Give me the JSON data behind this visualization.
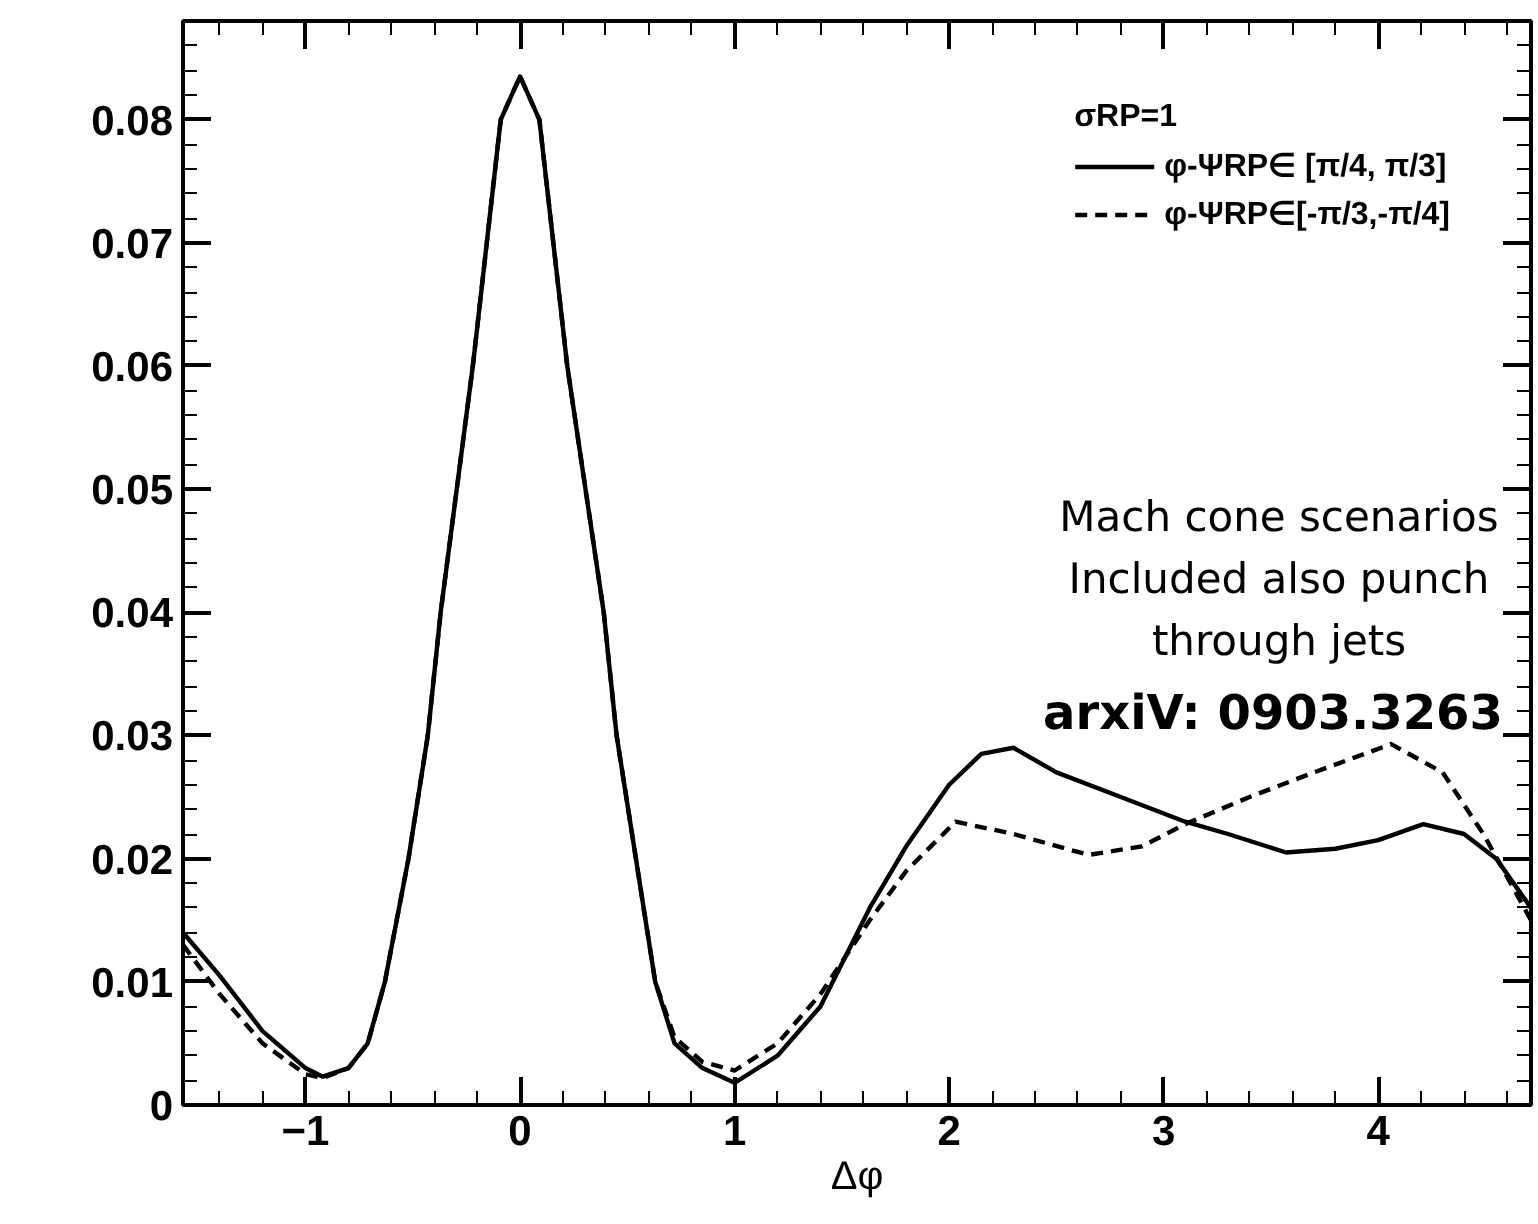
{
  "chart_data": {
    "type": "line",
    "xlabel": "Δφ",
    "legend_title": "σRP=1",
    "legend": "top right",
    "grid": false,
    "xlim": [
      -1.571,
      4.712
    ],
    "ylim": [
      0,
      0.088
    ],
    "xticks": [
      -1,
      0,
      1,
      2,
      3,
      4
    ],
    "yticks": [
      0,
      0.01,
      0.02,
      0.03,
      0.04,
      0.05,
      0.06,
      0.07,
      0.08
    ],
    "annotations": [
      "Mach cone scenarios\nIncluded also punch\nthrough jets",
      "arxiV: 0903.3263"
    ],
    "series": [
      {
        "name": "φ-ΨRP∈ [π/4, π/3]",
        "color": "#000000",
        "line_style": "solid",
        "x": [
          -1.571,
          -1.4,
          -1.2,
          -1.0,
          -0.92,
          -0.8,
          -0.71,
          -0.63,
          -0.52,
          -0.43,
          -0.37,
          -0.22,
          -0.09,
          0,
          0.09,
          0.22,
          0.39,
          0.45,
          0.54,
          0.63,
          0.72,
          0.85,
          1.0,
          1.2,
          1.4,
          1.63,
          1.8,
          2.0,
          2.15,
          2.3,
          2.5,
          2.8,
          3.1,
          3.3,
          3.57,
          3.8,
          4.0,
          4.21,
          4.4,
          4.55,
          4.712
        ],
        "values": [
          0.014,
          0.0105,
          0.006,
          0.003,
          0.0023,
          0.003,
          0.005,
          0.01,
          0.02,
          0.03,
          0.04,
          0.06,
          0.08,
          0.0835,
          0.08,
          0.06,
          0.04,
          0.03,
          0.02,
          0.01,
          0.005,
          0.003,
          0.0018,
          0.004,
          0.008,
          0.016,
          0.021,
          0.026,
          0.0285,
          0.029,
          0.027,
          0.025,
          0.023,
          0.022,
          0.0205,
          0.0208,
          0.0215,
          0.0228,
          0.022,
          0.02,
          0.016
        ]
      },
      {
        "name": "φ-ΨRP∈[-π/3,-π/4]",
        "color": "#000000",
        "line_style": "dashed",
        "x": [
          -1.571,
          -1.4,
          -1.2,
          -1.0,
          -0.92,
          -0.8,
          -0.71,
          -0.63,
          -0.52,
          -0.43,
          -0.37,
          -0.22,
          -0.09,
          0,
          0.09,
          0.22,
          0.39,
          0.45,
          0.54,
          0.63,
          0.72,
          0.85,
          1.0,
          1.2,
          1.4,
          1.63,
          1.8,
          2.03,
          2.3,
          2.65,
          2.9,
          3.1,
          3.4,
          3.7,
          4.06,
          4.3,
          4.49,
          4.712
        ],
        "values": [
          0.013,
          0.009,
          0.005,
          0.0025,
          0.0022,
          0.003,
          0.005,
          0.01,
          0.02,
          0.03,
          0.04,
          0.06,
          0.08,
          0.0835,
          0.08,
          0.06,
          0.04,
          0.03,
          0.02,
          0.01,
          0.0055,
          0.0035,
          0.0028,
          0.005,
          0.009,
          0.015,
          0.019,
          0.023,
          0.022,
          0.0203,
          0.021,
          0.0228,
          0.025,
          0.027,
          0.0293,
          0.027,
          0.022,
          0.015
        ]
      }
    ]
  }
}
